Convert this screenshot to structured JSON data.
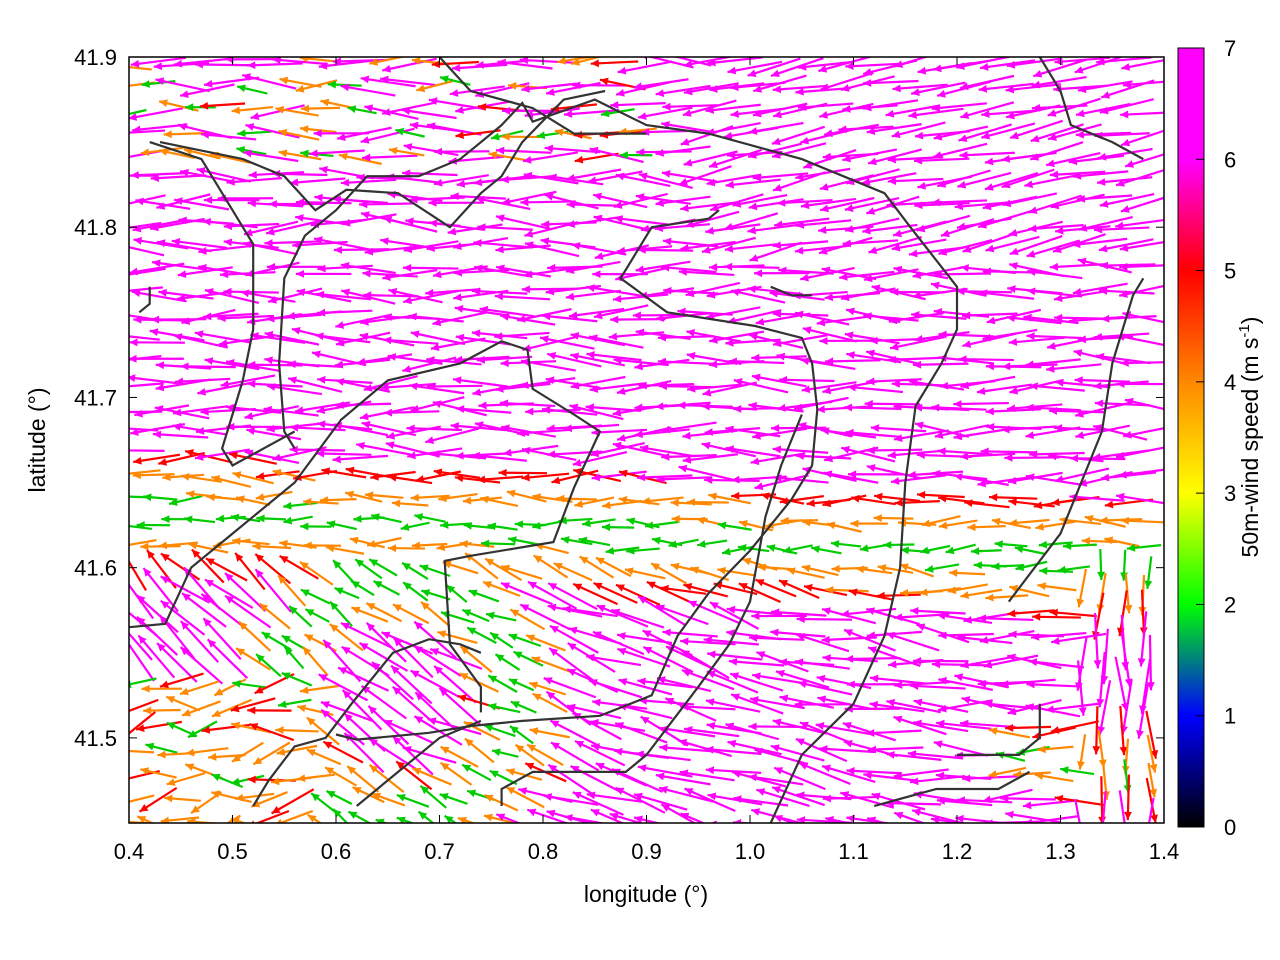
{
  "chart_data": {
    "type": "vector-field",
    "xlabel": "longitude (°)",
    "ylabel": "latitude (°)",
    "xlim": [
      0.4,
      1.4
    ],
    "ylim": [
      41.45,
      41.9
    ],
    "xticks": [
      "0.4",
      "0.5",
      "0.6",
      "0.7",
      "0.8",
      "0.9",
      "1.0",
      "1.1",
      "1.2",
      "1.3",
      "1.4"
    ],
    "yticks": [
      "41.5",
      "41.6",
      "41.7",
      "41.8",
      "41.9"
    ],
    "colorbar": {
      "label": "50m-wind speed (m s",
      "label_superscript": "-1",
      "label_close": ")",
      "range": [
        0,
        7
      ],
      "ticks": [
        "0",
        "1",
        "2",
        "3",
        "4",
        "5",
        "6",
        "7"
      ],
      "colors": [
        "#000000",
        "#0000ff",
        "#00ff00",
        "#ffff00",
        "#ff8800",
        "#ff0000",
        "#ff00ff"
      ]
    },
    "field_colors": {
      "fast": "#ff00ff",
      "mid": "#ff0000",
      "low": "#ff8800",
      "slow": "#00cc00"
    },
    "contour_color": "#333333",
    "contours": [
      [
        [
          0.4,
          41.565
        ],
        [
          0.435,
          41.567
        ],
        [
          0.46,
          41.6
        ],
        [
          0.5,
          41.62
        ],
        [
          0.56,
          41.65
        ],
        [
          0.605,
          41.687
        ],
        [
          0.65,
          41.71
        ],
        [
          0.72,
          41.72
        ],
        [
          0.76,
          41.733
        ],
        [
          0.785,
          41.728
        ],
        [
          0.79,
          41.705
        ],
        [
          0.83,
          41.69
        ],
        [
          0.855,
          41.68
        ],
        [
          0.83,
          41.647
        ],
        [
          0.81,
          41.615
        ],
        [
          0.79,
          41.613
        ],
        [
          0.73,
          41.607
        ],
        [
          0.705,
          41.604
        ],
        [
          0.71,
          41.555
        ],
        [
          0.74,
          41.53
        ],
        [
          0.74,
          41.515
        ]
      ],
      [
        [
          0.74,
          41.55
        ],
        [
          0.72,
          41.555
        ],
        [
          0.69,
          41.558
        ],
        [
          0.655,
          41.55
        ],
        [
          0.615,
          41.52
        ],
        [
          0.59,
          41.5
        ],
        [
          0.56,
          41.495
        ],
        [
          0.535,
          41.475
        ],
        [
          0.52,
          41.46
        ]
      ],
      [
        [
          0.6,
          41.502
        ],
        [
          0.62,
          41.499
        ],
        [
          0.69,
          41.503
        ],
        [
          0.73,
          41.507
        ],
        [
          0.78,
          41.51
        ],
        [
          0.855,
          41.513
        ],
        [
          0.905,
          41.525
        ],
        [
          0.93,
          41.56
        ],
        [
          0.96,
          41.585
        ],
        [
          1.0,
          41.61
        ],
        [
          1.04,
          41.64
        ],
        [
          1.06,
          41.66
        ],
        [
          1.065,
          41.693
        ],
        [
          1.06,
          41.72
        ],
        [
          1.05,
          41.735
        ],
        [
          1.005,
          41.742
        ],
        [
          0.92,
          41.75
        ],
        [
          0.875,
          41.77
        ],
        [
          0.905,
          41.8
        ],
        [
          0.96,
          41.805
        ],
        [
          0.97,
          41.81
        ]
      ],
      [
        [
          0.62,
          41.46
        ],
        [
          0.66,
          41.48
        ],
        [
          0.7,
          41.5
        ],
        [
          0.74,
          41.51
        ]
      ],
      [
        [
          0.76,
          41.46
        ],
        [
          0.76,
          41.47
        ],
        [
          0.79,
          41.48
        ],
        [
          0.85,
          41.48
        ],
        [
          0.88,
          41.48
        ],
        [
          0.9,
          41.49
        ],
        [
          0.95,
          41.53
        ],
        [
          0.98,
          41.555
        ],
        [
          1.0,
          41.58
        ],
        [
          1.015,
          41.63
        ],
        [
          1.03,
          41.66
        ],
        [
          1.05,
          41.69
        ]
      ],
      [
        [
          1.02,
          41.45
        ],
        [
          1.05,
          41.49
        ],
        [
          1.1,
          41.52
        ],
        [
          1.13,
          41.56
        ],
        [
          1.145,
          41.6
        ],
        [
          1.15,
          41.65
        ],
        [
          1.16,
          41.695
        ],
        [
          1.185,
          41.72
        ],
        [
          1.2,
          41.74
        ],
        [
          1.2,
          41.765
        ],
        [
          1.155,
          41.8
        ],
        [
          1.13,
          41.82
        ],
        [
          1.05,
          41.84
        ],
        [
          0.96,
          41.855
        ],
        [
          0.9,
          41.86
        ],
        [
          0.85,
          41.875
        ],
        [
          0.79,
          41.862
        ],
        [
          0.78,
          41.873
        ],
        [
          0.76,
          41.86
        ],
        [
          0.75,
          41.855
        ],
        [
          0.72,
          41.84
        ],
        [
          0.68,
          41.83
        ],
        [
          0.63,
          41.83
        ],
        [
          0.6,
          41.81
        ],
        [
          0.57,
          41.795
        ],
        [
          0.55,
          41.77
        ],
        [
          0.545,
          41.72
        ],
        [
          0.55,
          41.68
        ],
        [
          0.56,
          41.67
        ]
      ],
      [
        [
          0.43,
          41.85
        ],
        [
          0.51,
          41.84
        ],
        [
          0.55,
          41.83
        ],
        [
          0.58,
          41.81
        ],
        [
          0.61,
          41.822
        ],
        [
          0.66,
          41.82
        ],
        [
          0.71,
          41.8
        ],
        [
          0.74,
          41.82
        ],
        [
          0.76,
          41.83
        ],
        [
          0.78,
          41.85
        ],
        [
          0.82,
          41.875
        ],
        [
          0.86,
          41.88
        ]
      ],
      [
        [
          0.7,
          41.9
        ],
        [
          0.73,
          41.88
        ],
        [
          0.79,
          41.87
        ],
        [
          0.83,
          41.855
        ],
        [
          0.9,
          41.855
        ]
      ],
      [
        [
          0.42,
          41.765
        ],
        [
          0.42,
          41.755
        ],
        [
          0.41,
          41.75
        ]
      ],
      [
        [
          0.42,
          41.85
        ],
        [
          0.47,
          41.84
        ],
        [
          0.5,
          41.81
        ],
        [
          0.52,
          41.79
        ],
        [
          0.52,
          41.74
        ],
        [
          0.51,
          41.71
        ],
        [
          0.5,
          41.69
        ],
        [
          0.49,
          41.67
        ],
        [
          0.5,
          41.66
        ],
        [
          0.56,
          41.68
        ]
      ],
      [
        [
          1.02,
          41.765
        ],
        [
          1.04,
          41.76
        ],
        [
          1.06,
          41.76
        ]
      ],
      [
        [
          1.2,
          41.49
        ],
        [
          1.26,
          41.49
        ],
        [
          1.28,
          41.5
        ],
        [
          1.28,
          41.52
        ]
      ],
      [
        [
          1.12,
          41.46
        ],
        [
          1.18,
          41.47
        ],
        [
          1.24,
          41.47
        ],
        [
          1.27,
          41.48
        ]
      ],
      [
        [
          1.25,
          41.58
        ],
        [
          1.3,
          41.62
        ],
        [
          1.32,
          41.65
        ],
        [
          1.34,
          41.68
        ],
        [
          1.35,
          41.72
        ],
        [
          1.37,
          41.76
        ],
        [
          1.38,
          41.77
        ]
      ],
      [
        [
          1.28,
          41.9
        ],
        [
          1.3,
          41.88
        ],
        [
          1.31,
          41.86
        ],
        [
          1.35,
          41.85
        ],
        [
          1.38,
          41.84
        ]
      ]
    ]
  }
}
